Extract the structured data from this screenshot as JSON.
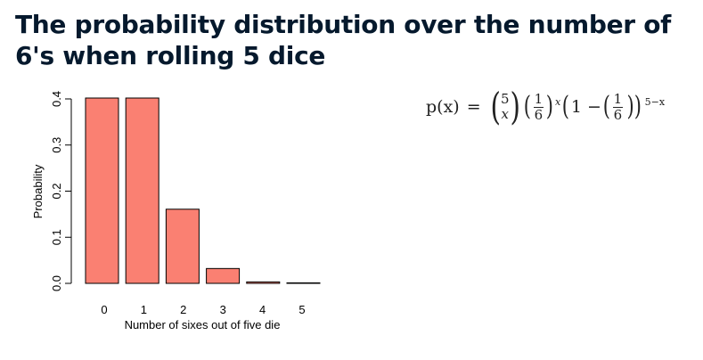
{
  "title": "The probability distribution over the number of 6's when rolling 5 dice",
  "formula": {
    "lhs": "p(x)",
    "equals": "=",
    "binom_top": "5",
    "binom_bottom": "x",
    "frac_num": "1",
    "frac_den": "6",
    "power_x": "x",
    "one_minus": "1 −",
    "power_rest": "5−x"
  },
  "chart_data": {
    "type": "bar",
    "categories": [
      "0",
      "1",
      "2",
      "3",
      "4",
      "5"
    ],
    "values": [
      0.4019,
      0.4019,
      0.1608,
      0.0322,
      0.0032,
      0.0001
    ],
    "xlabel": "Number of sixes out of five die",
    "ylabel": "Probability",
    "ylim": [
      0,
      0.4
    ],
    "yticks": [
      "0.0",
      "0.1",
      "0.2",
      "0.3",
      "0.4"
    ],
    "bar_color": "#fa8072",
    "grid": false
  }
}
